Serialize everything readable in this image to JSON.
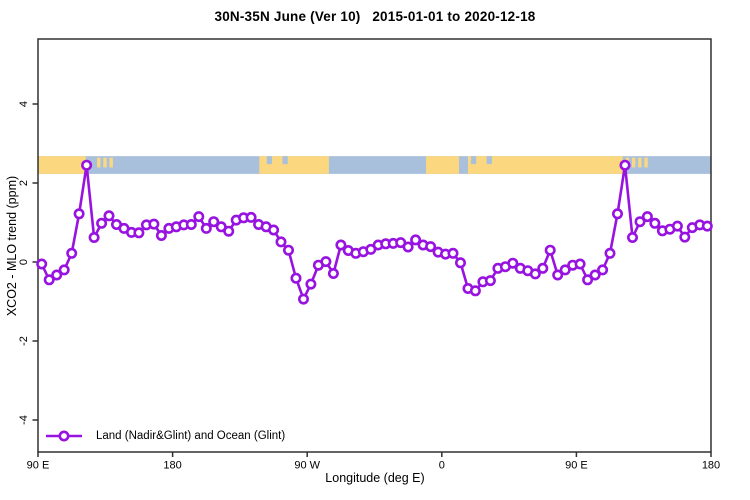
{
  "chart_data": {
    "type": "line",
    "title": "30N-35N June (Ver 10)   2015-01-01 to 2020-12-18",
    "xlabel": "Longitude (deg E)",
    "ylabel": "XCO2 - MLO trend (ppm)",
    "grid": false,
    "x_range": [
      90,
      540
    ],
    "ylim": [
      -4.8,
      5.6
    ],
    "x_ticks": [
      {
        "lon": 90,
        "label": "90 E"
      },
      {
        "lon": 180,
        "label": "180"
      },
      {
        "lon": 270,
        "label": "90 W"
      },
      {
        "lon": 360,
        "label": "0"
      },
      {
        "lon": 450,
        "label": "90 E"
      },
      {
        "lon": 540,
        "label": "180"
      }
    ],
    "y_ticks": [
      {
        "value": 4,
        "label": "4"
      },
      {
        "value": 2,
        "label": "2"
      },
      {
        "value": 0,
        "label": "0"
      },
      {
        "value": -2,
        "label": "-2"
      },
      {
        "value": -4,
        "label": "-4"
      }
    ],
    "legend": {
      "label": "Land (Nadir&Glint) and Ocean (Glint)",
      "position": "bottom-left",
      "marker": "open-circle"
    },
    "series": [
      {
        "name": "Land (Nadir&Glint) and Ocean (Glint)",
        "x": [
          92.5,
          97.5,
          102.5,
          107.5,
          112.5,
          117.5,
          122.5,
          127.5,
          132.5,
          137.5,
          142.5,
          147.5,
          152.5,
          157.5,
          162.5,
          167.5,
          172.5,
          177.5,
          182.5,
          187.5,
          192.5,
          197.5,
          202.5,
          207.5,
          212.5,
          217.5,
          222.5,
          227.5,
          232.5,
          237.5,
          242.5,
          247.5,
          252.5,
          257.5,
          262.5,
          267.5,
          272.5,
          277.5,
          282.5,
          287.5,
          292.5,
          297.5,
          302.5,
          307.5,
          312.5,
          317.5,
          322.5,
          327.5,
          332.5,
          337.5,
          342.5,
          347.5,
          352.5,
          357.5,
          362.5,
          367.5,
          372.5,
          377.5,
          382.5,
          387.5,
          392.5,
          397.5,
          402.5,
          407.5,
          412.5,
          417.5,
          422.5,
          427.5,
          432.5,
          437.5,
          442.5,
          447.5,
          452.5,
          457.5,
          462.5,
          467.5,
          472.5,
          477.5,
          482.5,
          487.5,
          492.5,
          497.5,
          502.5,
          507.5,
          512.5,
          517.5,
          522.5,
          527.5,
          532.5,
          537.5
        ],
        "values": [
          -0.05,
          -0.45,
          -0.33,
          -0.2,
          0.22,
          1.22,
          2.45,
          0.62,
          0.98,
          1.17,
          0.95,
          0.85,
          0.75,
          0.74,
          0.94,
          0.96,
          0.67,
          0.85,
          0.89,
          0.94,
          0.95,
          1.15,
          0.85,
          1.02,
          0.89,
          0.78,
          1.06,
          1.12,
          1.13,
          0.95,
          0.89,
          0.81,
          0.51,
          0.3,
          -0.41,
          -0.94,
          -0.56,
          -0.08,
          0.01,
          -0.29,
          0.43,
          0.29,
          0.22,
          0.26,
          0.32,
          0.43,
          0.46,
          0.47,
          0.49,
          0.38,
          0.56,
          0.43,
          0.39,
          0.25,
          0.2,
          0.22,
          -0.02,
          -0.67,
          -0.73,
          -0.5,
          -0.47,
          -0.16,
          -0.12,
          -0.03,
          -0.16,
          -0.22,
          -0.3,
          -0.16,
          0.3,
          -0.33,
          -0.2,
          -0.08,
          -0.05,
          -0.45,
          -0.33,
          -0.2,
          0.22,
          1.22,
          2.45,
          0.62,
          1.02,
          1.15,
          0.98,
          0.79,
          0.83,
          0.91,
          0.63,
          0.87,
          0.94,
          0.91
        ]
      }
    ],
    "band": {
      "description": "land/ocean strip map across 30N-35N",
      "y_value_range": [
        2.23,
        2.68
      ],
      "land_segments": [
        {
          "from": 90,
          "to": 122,
          "style": "solid"
        },
        {
          "from": 129.5,
          "to": 141,
          "style": "speckled"
        },
        {
          "from": 238,
          "to": 284.5,
          "style": "solid"
        },
        {
          "from": 349.5,
          "to": 371.5,
          "style": "solid"
        },
        {
          "from": 377.5,
          "to": 481,
          "style": "solid"
        },
        {
          "from": 483,
          "to": 497,
          "style": "speckled"
        }
      ],
      "ocean_patches": [
        {
          "from": 243,
          "to": 246.5
        },
        {
          "from": 253.5,
          "to": 257
        },
        {
          "from": 379.5,
          "to": 383
        },
        {
          "from": 390,
          "to": 393.5
        }
      ]
    },
    "colors": {
      "series": "#9812e0",
      "land": "#fbd87f",
      "ocean": "#a9c0dc",
      "axis": "#303030",
      "text": "#000000",
      "marker_fill": "#ffffff",
      "background": "#ffffff"
    }
  }
}
